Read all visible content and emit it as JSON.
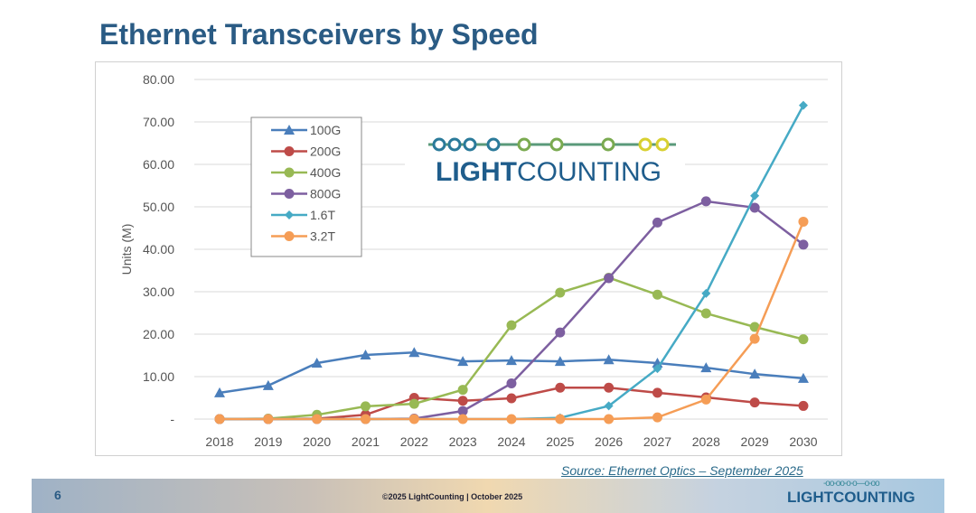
{
  "title": "Ethernet Transceivers by Speed",
  "source": {
    "label": "Source:",
    "text": "Ethernet Optics – September 2025"
  },
  "footer": {
    "page": "6",
    "copyright": "©2025 LightCounting | October 2025",
    "logo": "LIGHTCOUNTING"
  },
  "logo": {
    "light": "LIGHT",
    "counting": "COUNTING"
  },
  "chart_data": {
    "type": "line",
    "title": "",
    "xlabel": "",
    "ylabel": "Units (M)",
    "ylim": [
      0,
      80
    ],
    "yticks": [
      "-",
      "10.00",
      "20.00",
      "30.00",
      "40.00",
      "50.00",
      "60.00",
      "70.00",
      "80.00"
    ],
    "grid": true,
    "legend": "top-left",
    "categories": [
      "2018",
      "2019",
      "2020",
      "2021",
      "2022",
      "2023",
      "2024",
      "2025",
      "2026",
      "2027",
      "2028",
      "2029",
      "2030"
    ],
    "series": [
      {
        "name": "100G",
        "color": "#4a7ebb",
        "marker": "triangle",
        "values": [
          6.2,
          7.9,
          13.2,
          15.1,
          15.7,
          13.6,
          13.8,
          13.6,
          14.0,
          13.2,
          12.1,
          10.6,
          9.6
        ]
      },
      {
        "name": "200G",
        "color": "#be4b48",
        "marker": "circle",
        "values": [
          0,
          0,
          0.1,
          1.0,
          5.0,
          4.3,
          4.9,
          7.4,
          7.4,
          6.2,
          5.1,
          3.9,
          3.1
        ]
      },
      {
        "name": "400G",
        "color": "#98b954",
        "marker": "circle",
        "values": [
          0,
          0.1,
          1.0,
          3.0,
          3.6,
          6.9,
          22.1,
          29.8,
          33.3,
          29.3,
          24.9,
          21.7,
          18.8
        ]
      },
      {
        "name": "800G",
        "color": "#7d5fa0",
        "marker": "circle",
        "values": [
          0,
          0,
          0,
          0,
          0.1,
          1.9,
          8.4,
          20.4,
          33.2,
          46.3,
          51.3,
          49.8,
          41.1
        ]
      },
      {
        "name": "1.6T",
        "color": "#46aac5",
        "marker": "diamond",
        "values": [
          0,
          0,
          0,
          0,
          0,
          0,
          0,
          0.3,
          3.1,
          11.9,
          29.6,
          52.6,
          73.9
        ]
      },
      {
        "name": "3.2T",
        "color": "#f59d56",
        "marker": "circle",
        "values": [
          0,
          0,
          0,
          0,
          0,
          0,
          0,
          0,
          0,
          0.4,
          4.6,
          18.9,
          46.5
        ]
      }
    ]
  }
}
